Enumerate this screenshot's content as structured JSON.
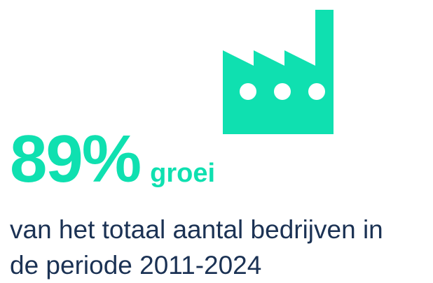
{
  "colors": {
    "accent": "#0fe0b0",
    "text": "#1b3254"
  },
  "icon": "factory-icon",
  "stat": {
    "value": "89%",
    "word": "groei"
  },
  "description": {
    "line1": "van het totaal aantal bedrijven in",
    "line2": "de periode 2011-2024"
  }
}
